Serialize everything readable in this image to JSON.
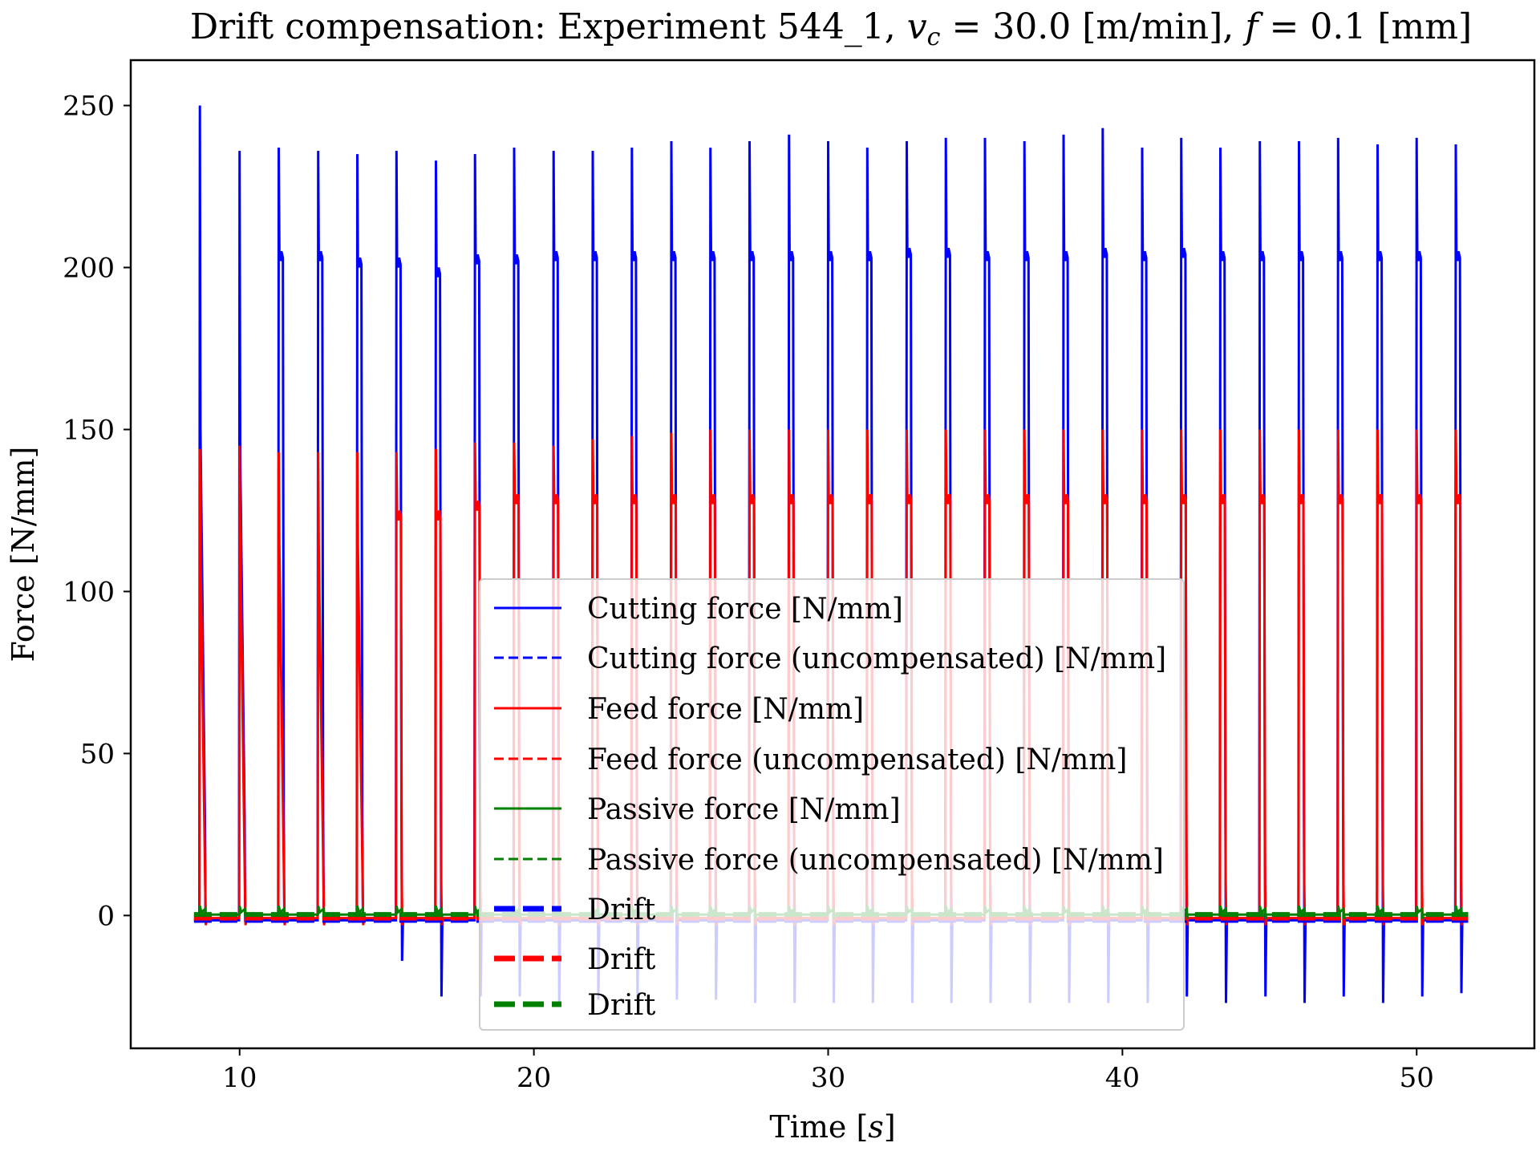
{
  "chart_data": {
    "type": "line",
    "title": {
      "prefix": "Drift compensation: Experiment 544_1, ",
      "vc_symbol": "v",
      "vc_sub": "c",
      "vc_value": " = 30.0 [m/min], ",
      "f_symbol": "f",
      "f_value": " = 0.1 [mm]"
    },
    "xlabel": {
      "text": "Time [",
      "symbol": "s",
      "close": "]"
    },
    "ylabel": "Force [N/mm]",
    "xlim": [
      6.3,
      54
    ],
    "ylim": [
      -41,
      264
    ],
    "xticks": [
      10,
      20,
      30,
      40,
      50
    ],
    "yticks": [
      0,
      50,
      100,
      150,
      200,
      250
    ],
    "grid": false,
    "legend_position": "center",
    "pulse_times": [
      8.65,
      10.0,
      11.33,
      12.67,
      14.0,
      15.33,
      16.67,
      18.0,
      19.33,
      20.67,
      22.0,
      23.33,
      24.67,
      26.0,
      27.33,
      28.67,
      30.0,
      31.33,
      32.67,
      34.0,
      35.33,
      36.67,
      38.0,
      39.33,
      40.67,
      42.0,
      43.33,
      44.67,
      46.0,
      47.33,
      48.67,
      50.0,
      51.33
    ],
    "cutting_peak": [
      250,
      236,
      237,
      236,
      235,
      236,
      233,
      235,
      237,
      236,
      236,
      237,
      239,
      237,
      239,
      241,
      239,
      237,
      239,
      240,
      240,
      239,
      241,
      243,
      237,
      240,
      237,
      239,
      239,
      240,
      238,
      240,
      238
    ],
    "cutting_plateau": [
      0,
      0,
      205,
      205,
      203,
      203,
      200,
      204,
      204,
      205,
      205,
      205,
      205,
      205,
      205,
      205,
      205,
      205,
      206,
      206,
      205,
      205,
      205,
      206,
      205,
      206,
      205,
      205,
      205,
      205,
      205,
      205,
      205
    ],
    "feed_peak": [
      144,
      145,
      143,
      143,
      143,
      143,
      144,
      146,
      146,
      145,
      147,
      148,
      149,
      150,
      150,
      150,
      150,
      150,
      150,
      150,
      150,
      150,
      150,
      150,
      150,
      150,
      150,
      150,
      150,
      150,
      150,
      150,
      150
    ],
    "feed_plateau": [
      0,
      0,
      0,
      0,
      0,
      125,
      125,
      128,
      130,
      130,
      130,
      130,
      130,
      130,
      130,
      130,
      130,
      130,
      130,
      130,
      130,
      130,
      130,
      130,
      130,
      130,
      130,
      130,
      130,
      130,
      130,
      130,
      130
    ],
    "cutting_undershoot": [
      -2,
      -2,
      -2,
      -2,
      -2,
      -14,
      -25,
      -25,
      -25,
      -27,
      -26,
      -26,
      -26,
      -26,
      -27,
      -27,
      -27,
      -27,
      -27,
      -27,
      -27,
      -27,
      -27,
      -27,
      -27,
      -25,
      -27,
      -25,
      -27,
      -25,
      -27,
      -25,
      -24
    ],
    "baseline": {
      "cutting": -1.5,
      "feed": -0.8,
      "passive": 0.3
    },
    "series": [
      {
        "name": "Cutting force [N/mm]",
        "color": "#0000ff",
        "style": "solid"
      },
      {
        "name": "Cutting force (uncompensated) [N/mm]",
        "color": "#0000ff",
        "style": "dashed"
      },
      {
        "name": "Feed force [N/mm]",
        "color": "#ff0000",
        "style": "solid"
      },
      {
        "name": "Feed force (uncompensated) [N/mm]",
        "color": "#ff0000",
        "style": "dashed"
      },
      {
        "name": "Passive force [N/mm]",
        "color": "#008000",
        "style": "solid"
      },
      {
        "name": "Passive force (uncompensated) [N/mm]",
        "color": "#008000",
        "style": "dashed"
      },
      {
        "name": "Drift",
        "color": "#0000ff",
        "style": "thick-dashed"
      },
      {
        "name": "Drift",
        "color": "#ff0000",
        "style": "thick-dashed"
      },
      {
        "name": "Drift",
        "color": "#008000",
        "style": "thick-dashed"
      }
    ]
  }
}
